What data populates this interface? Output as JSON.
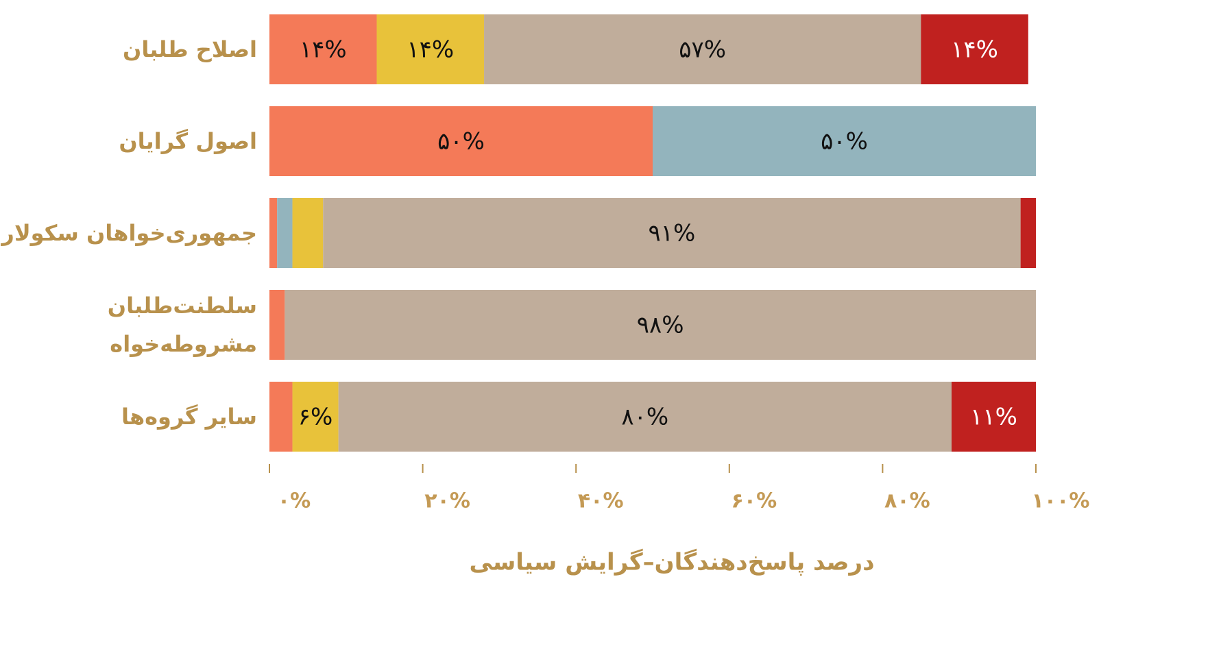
{
  "chart_data": {
    "type": "stacked_barh",
    "categories": [
      "اصلاح طلبان",
      "اصول گرایان",
      "جمهوری‌خواهان سکولار",
      "سلطنت‌طلبان\nمشروطه‌خواه",
      "سایر گروه‌ها"
    ],
    "series": [
      {
        "color": "#f47a58",
        "values": [
          14,
          50,
          1,
          2,
          3
        ],
        "value_labels": [
          "۱۴%",
          "۵۰%",
          null,
          null,
          null
        ]
      },
      {
        "color": "#93b4bd",
        "values": [
          0,
          50,
          2,
          0,
          0
        ],
        "value_labels": [
          null,
          "۵۰%",
          null,
          null,
          null
        ]
      },
      {
        "color": "#e8c23a",
        "values": [
          14,
          0,
          4,
          0,
          6
        ],
        "value_labels": [
          "۱۴%",
          null,
          null,
          null,
          "۶%"
        ]
      },
      {
        "color": "#c0ad9b",
        "values": [
          57,
          0,
          91,
          98,
          80
        ],
        "value_labels": [
          "۵۷%",
          null,
          "۹۱%",
          "۹۸%",
          "۸۰%"
        ]
      },
      {
        "color": "#c0211f",
        "values": [
          14,
          0,
          2,
          0,
          11
        ],
        "value_labels": [
          "۱۴%",
          null,
          null,
          null,
          "۱۱%"
        ]
      }
    ],
    "xlim": [
      0,
      100
    ],
    "xticks": [
      {
        "value": 0,
        "label": "۰%"
      },
      {
        "value": 20,
        "label": "۲۰%"
      },
      {
        "value": 40,
        "label": "۴۰%"
      },
      {
        "value": 60,
        "label": "۶۰%"
      },
      {
        "value": 80,
        "label": "۸۰%"
      },
      {
        "value": 100,
        "label": "۱۰۰%"
      }
    ],
    "xlabel": "درصد پاسخ‌دهندگان–گرایش سیاسی",
    "grid": false
  }
}
